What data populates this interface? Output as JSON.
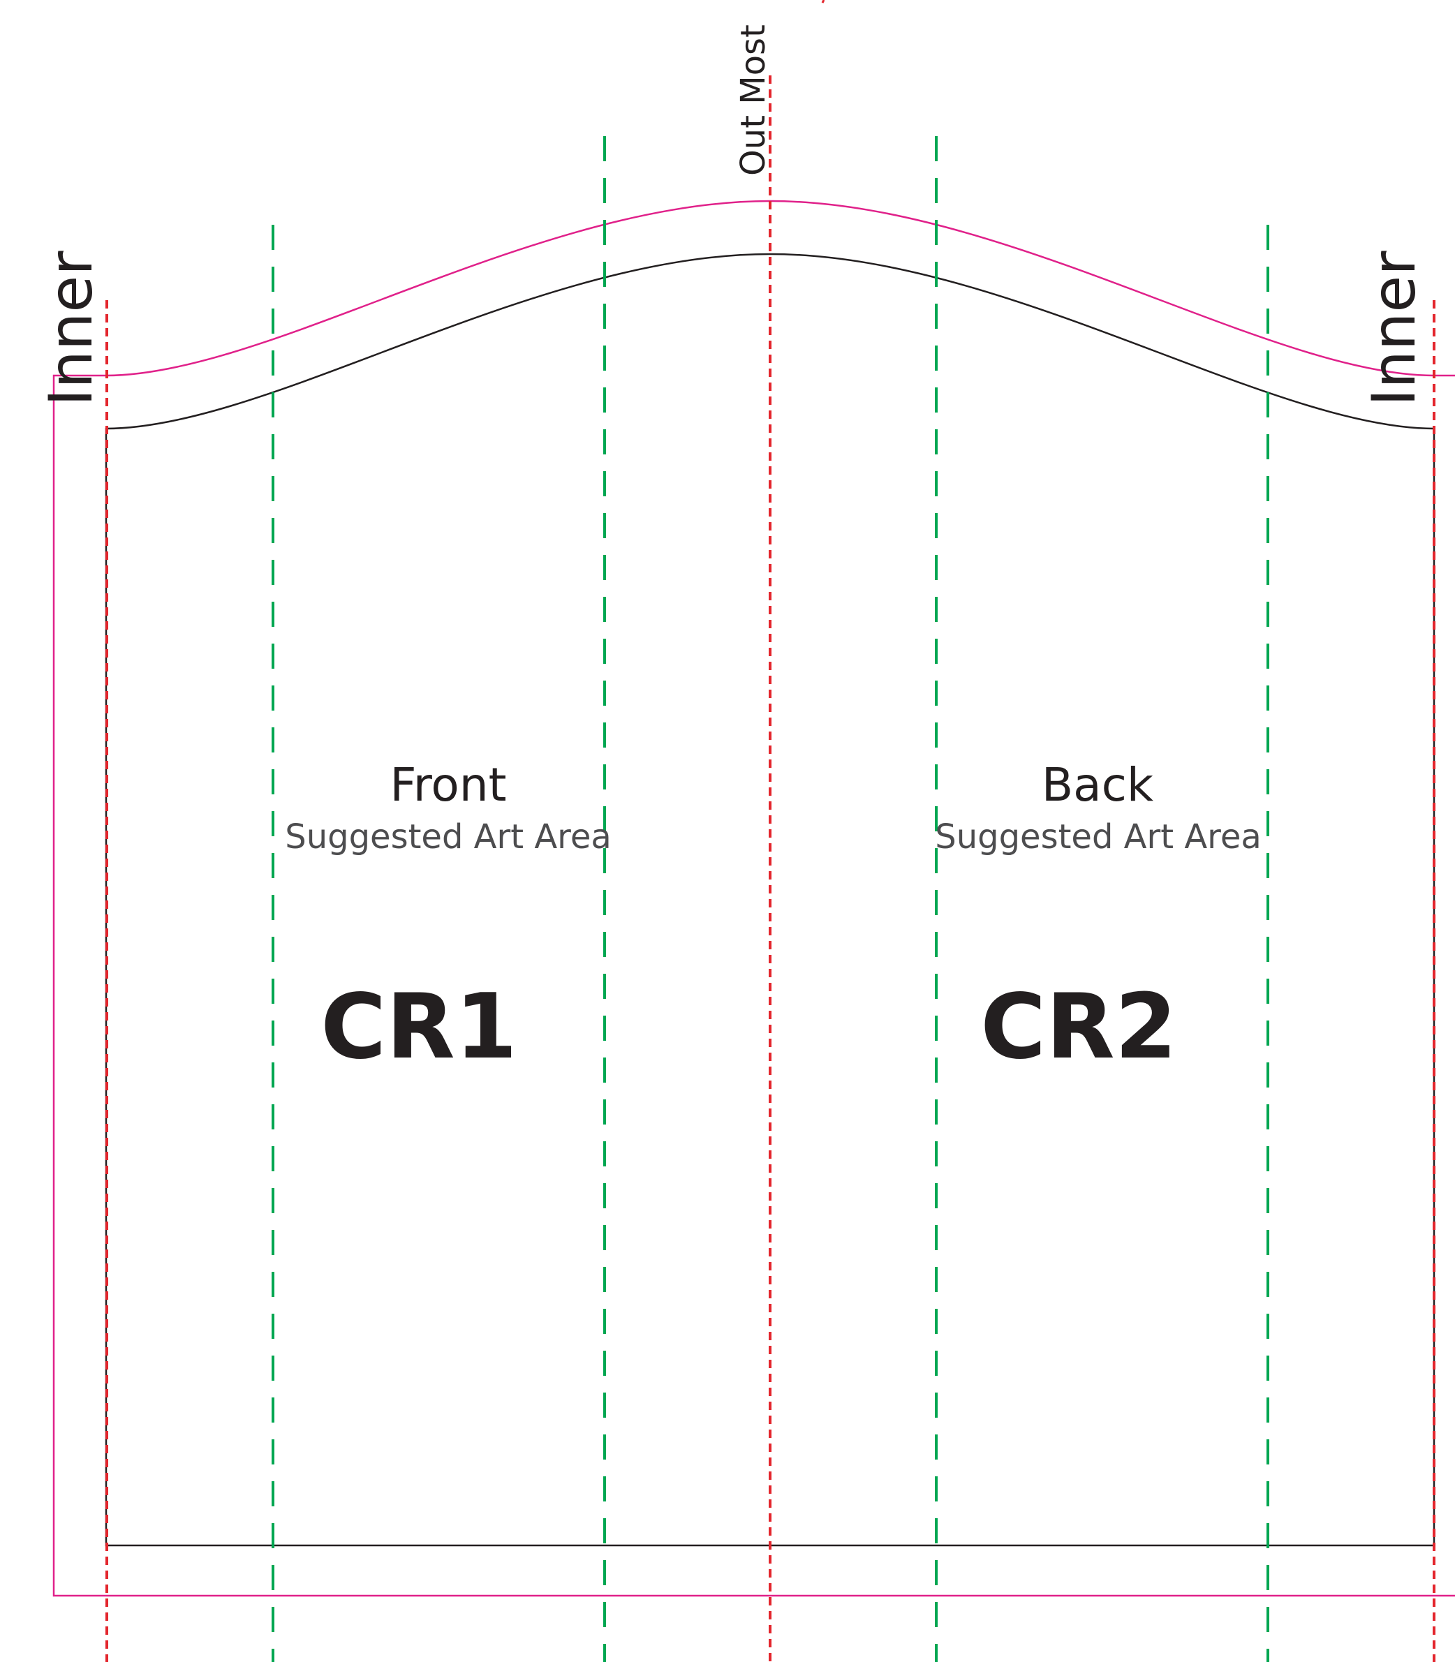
{
  "labels": {
    "inner_left": "Inner",
    "inner_right": "Inner",
    "out_most": "Out Most"
  },
  "panels": [
    {
      "title": "Front",
      "subtitle": "Suggested Art Area",
      "code": "CR1"
    },
    {
      "title": "Back",
      "subtitle": "Suggested Art Area",
      "code": "CR2"
    }
  ],
  "colors": {
    "bleed_line": "#e0218a",
    "trim_line": "#231f20",
    "fold_line": "#e3262d",
    "art_area_guide": "#00a651"
  }
}
